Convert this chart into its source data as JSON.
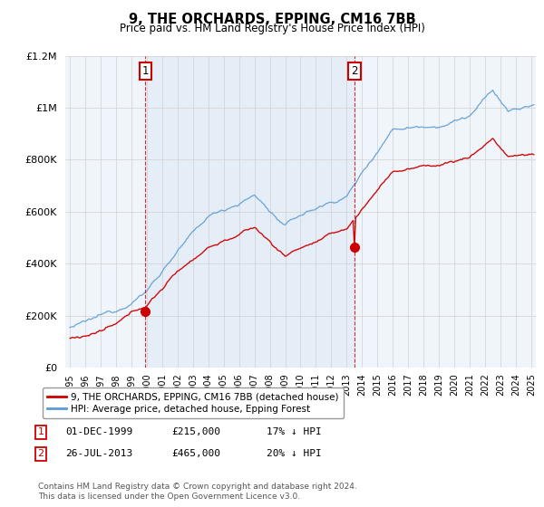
{
  "title": "9, THE ORCHARDS, EPPING, CM16 7BB",
  "subtitle": "Price paid vs. HM Land Registry's House Price Index (HPI)",
  "background_color": "#ffffff",
  "plot_bg_color": "#f0f5fb",
  "shade_color": "#dce8f5",
  "grid_color": "#d0d0d0",
  "sale1_price": 215000,
  "sale2_price": 465000,
  "legend_line1": "9, THE ORCHARDS, EPPING, CM16 7BB (detached house)",
  "legend_line2": "HPI: Average price, detached house, Epping Forest",
  "footnote3": "Contains HM Land Registry data © Crown copyright and database right 2024.\nThis data is licensed under the Open Government Licence v3.0.",
  "hpi_color": "#5b9bd5",
  "price_color": "#cc0000",
  "vline_color": "#cc0000",
  "ylim": [
    0,
    1200000
  ],
  "yticks": [
    0,
    200000,
    400000,
    600000,
    800000,
    1000000,
    1200000
  ]
}
